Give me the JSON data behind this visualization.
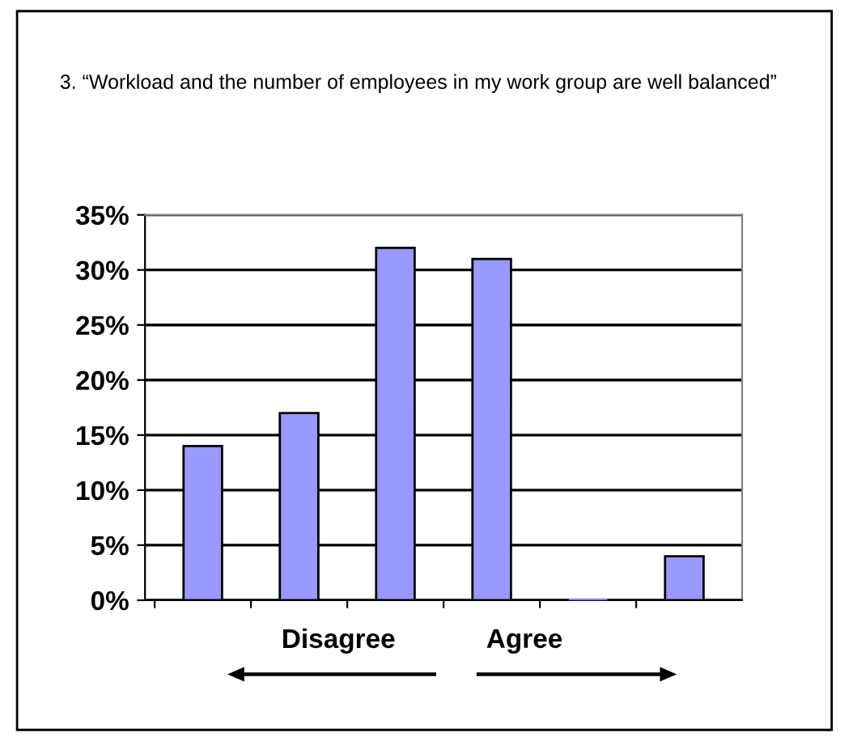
{
  "chart_data": {
    "type": "bar",
    "title": "3. “Workload and the number of employees in my work group are well balanced”",
    "categories": [
      null,
      null,
      null,
      null,
      null,
      null
    ],
    "values": [
      14,
      17,
      32,
      31,
      0,
      4
    ],
    "color": "#9999ff",
    "ylim": [
      0,
      35
    ],
    "yticks": [
      {
        "value": 0,
        "label": "0%"
      },
      {
        "value": 5,
        "label": "5%"
      },
      {
        "value": 10,
        "label": "10%"
      },
      {
        "value": 15,
        "label": "15%"
      },
      {
        "value": 20,
        "label": "20%"
      },
      {
        "value": 25,
        "label": "25%"
      },
      {
        "value": 30,
        "label": "30%"
      },
      {
        "value": 35,
        "label": "35%"
      }
    ],
    "grid": "y",
    "annotations": [
      "Disagree",
      "Agree"
    ]
  }
}
